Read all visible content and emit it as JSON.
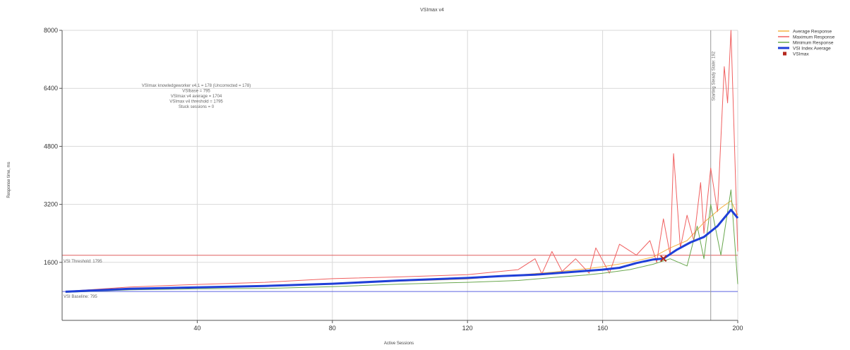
{
  "chart_data": {
    "type": "line",
    "title": "VSImax v4",
    "xlabel": "Active Sessions",
    "ylabel": "Response time, ms",
    "xlim": [
      0,
      200
    ],
    "ylim": [
      0,
      8000
    ],
    "xticks": [
      "40",
      "80",
      "120",
      "160",
      "200"
    ],
    "yticks": [
      "1600",
      "3200",
      "4800",
      "6400",
      "8000"
    ],
    "grid": true,
    "legend_position": "right",
    "annotation_lines": [
      "VSImax knowledgeworker v4.1 = 178 (Uncorrected = 178)",
      "VSIbase = 795",
      "VSImax v4 average = 1704",
      "VSImax v4 threshold = 1795",
      "Stuck sessions = 0"
    ],
    "threshold": {
      "label": "VSI Threshold: 1795",
      "value": 1795
    },
    "baseline": {
      "label": "VSI Baseline: 795",
      "value": 795
    },
    "steady_state": {
      "label": "Starting Steady State: 192",
      "x": 192
    },
    "vsimax_point": {
      "x": 178,
      "y": 1704
    },
    "series": [
      {
        "name": "Average Response",
        "color": "#f5b342",
        "points": [
          [
            1,
            790
          ],
          [
            20,
            870
          ],
          [
            40,
            910
          ],
          [
            60,
            940
          ],
          [
            80,
            1000
          ],
          [
            100,
            1080
          ],
          [
            120,
            1140
          ],
          [
            135,
            1250
          ],
          [
            145,
            1330
          ],
          [
            155,
            1420
          ],
          [
            160,
            1480
          ],
          [
            168,
            1600
          ],
          [
            175,
            1750
          ],
          [
            180,
            2000
          ],
          [
            185,
            2200
          ],
          [
            190,
            2700
          ],
          [
            195,
            3100
          ],
          [
            198,
            3300
          ],
          [
            200,
            2900
          ]
        ]
      },
      {
        "name": "Maximum Response",
        "color": "#f06060",
        "points": [
          [
            1,
            800
          ],
          [
            20,
            920
          ],
          [
            40,
            990
          ],
          [
            60,
            1050
          ],
          [
            80,
            1150
          ],
          [
            100,
            1200
          ],
          [
            120,
            1260
          ],
          [
            135,
            1400
          ],
          [
            140,
            1700
          ],
          [
            142,
            1280
          ],
          [
            145,
            1900
          ],
          [
            148,
            1350
          ],
          [
            152,
            1700
          ],
          [
            156,
            1300
          ],
          [
            158,
            2000
          ],
          [
            162,
            1300
          ],
          [
            165,
            2100
          ],
          [
            170,
            1800
          ],
          [
            174,
            2200
          ],
          [
            176,
            1600
          ],
          [
            178,
            2800
          ],
          [
            180,
            1800
          ],
          [
            181,
            4600
          ],
          [
            183,
            2000
          ],
          [
            185,
            2900
          ],
          [
            187,
            2200
          ],
          [
            189,
            3800
          ],
          [
            190,
            2400
          ],
          [
            192,
            4200
          ],
          [
            194,
            3000
          ],
          [
            196,
            7000
          ],
          [
            197,
            6000
          ],
          [
            198,
            8000
          ],
          [
            200,
            1900
          ]
        ]
      },
      {
        "name": "Minimum Response",
        "color": "#6aa84f",
        "points": [
          [
            1,
            770
          ],
          [
            20,
            840
          ],
          [
            40,
            870
          ],
          [
            60,
            880
          ],
          [
            80,
            930
          ],
          [
            100,
            1000
          ],
          [
            120,
            1050
          ],
          [
            135,
            1100
          ],
          [
            145,
            1180
          ],
          [
            155,
            1250
          ],
          [
            160,
            1300
          ],
          [
            168,
            1400
          ],
          [
            175,
            1550
          ],
          [
            180,
            1700
          ],
          [
            185,
            1500
          ],
          [
            188,
            2600
          ],
          [
            190,
            1700
          ],
          [
            192,
            3200
          ],
          [
            195,
            1800
          ],
          [
            198,
            3600
          ],
          [
            200,
            1000
          ]
        ]
      },
      {
        "name": "VSI Index Average",
        "color": "#1f3fd8",
        "points": [
          [
            1,
            790
          ],
          [
            20,
            870
          ],
          [
            40,
            910
          ],
          [
            60,
            950
          ],
          [
            80,
            1010
          ],
          [
            100,
            1100
          ],
          [
            120,
            1170
          ],
          [
            130,
            1220
          ],
          [
            140,
            1260
          ],
          [
            150,
            1330
          ],
          [
            160,
            1400
          ],
          [
            165,
            1450
          ],
          [
            170,
            1580
          ],
          [
            175,
            1680
          ],
          [
            178,
            1704
          ],
          [
            182,
            1950
          ],
          [
            186,
            2150
          ],
          [
            190,
            2300
          ],
          [
            194,
            2600
          ],
          [
            198,
            3050
          ],
          [
            200,
            2820
          ]
        ]
      }
    ]
  }
}
